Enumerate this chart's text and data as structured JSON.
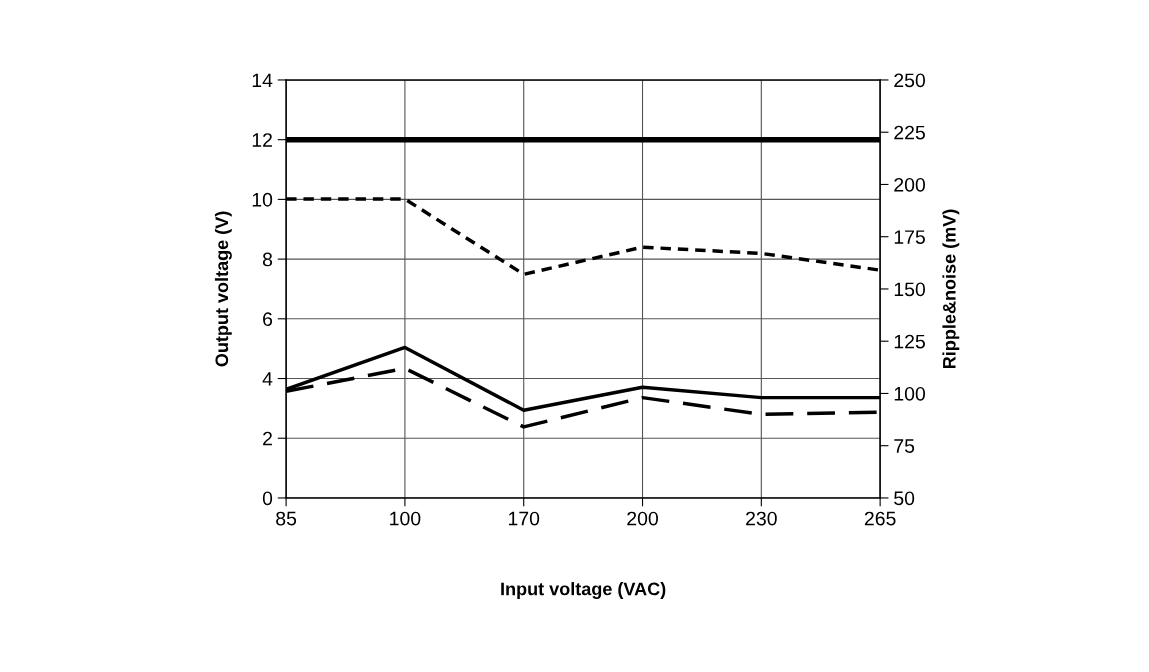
{
  "chart_data": {
    "type": "line",
    "xlabel": "Input voltage (VAC)",
    "ylabel": "Output voltage (V)",
    "y2label": "Ripple&noise (mV)",
    "categories": [
      "85",
      "100",
      "170",
      "200",
      "230",
      "265"
    ],
    "series": [
      {
        "color": "#000000",
        "values": [
          12,
          12,
          12,
          12,
          12,
          12
        ],
        "line_style": "solid"
      },
      {
        "color": "#000000",
        "values": [
          193,
          193,
          157,
          170,
          167,
          159
        ],
        "axis": "y2",
        "line_style": "dotted"
      },
      {
        "color": "#000000",
        "values": [
          102,
          122,
          92,
          103,
          98,
          98
        ],
        "axis": "y2",
        "line_style": "solid"
      },
      {
        "color": "#000000",
        "values": [
          101,
          112,
          84,
          98,
          90,
          91
        ],
        "axis": "y2",
        "line_style": "dashed"
      }
    ],
    "ylim": [
      0,
      14
    ],
    "yticks": [
      0,
      2,
      4,
      6,
      8,
      10,
      12,
      14
    ],
    "y2lim": [
      50,
      250
    ],
    "y2ticks": [
      50,
      75,
      100,
      125,
      150,
      175,
      200,
      225,
      250
    ],
    "grid": true,
    "legend": false,
    "marker": "none"
  }
}
